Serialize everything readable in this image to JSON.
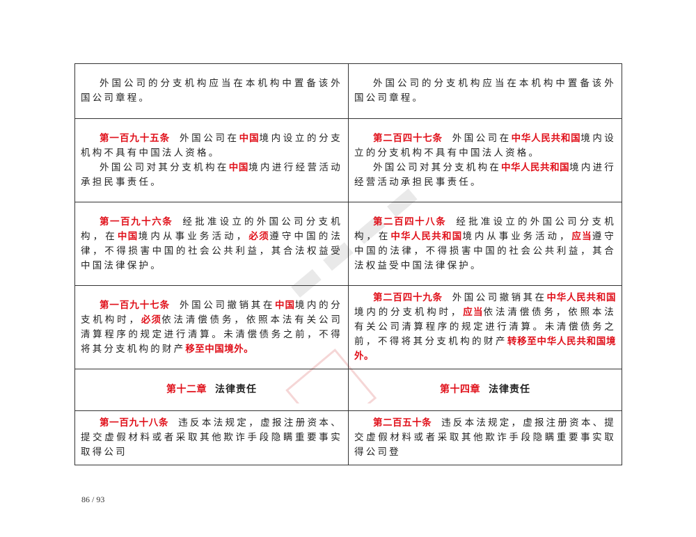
{
  "rows": [
    {
      "left": [
        [
          {
            "t": "外国公司的分支机构应当在本机构中置备该外国公司章程。"
          }
        ]
      ],
      "right": [
        [
          {
            "t": "外国公司的分支机构应当在本机构中置备该外国公司章程。"
          }
        ]
      ]
    },
    {
      "left": [
        [
          {
            "t": "第一百九十五条",
            "red": true,
            "art": true
          },
          {
            "t": "外国公司在"
          },
          {
            "t": "中国",
            "red": true
          },
          {
            "t": "境内设立的分支机构不具有中国法人资格。"
          }
        ],
        [
          {
            "t": "外国公司对其分支机构在"
          },
          {
            "t": "中国",
            "red": true
          },
          {
            "t": "境内进行经营活动承担民事责任。"
          }
        ]
      ],
      "right": [
        [
          {
            "t": "第二百四十七条",
            "red": true,
            "art": true
          },
          {
            "t": "外国公司在"
          },
          {
            "t": "中华人民共和国",
            "red": true
          },
          {
            "t": "境内设立的分支机构不具有中国法人资格。"
          }
        ],
        [
          {
            "t": "外国公司对其分支机构在"
          },
          {
            "t": "中华人民共和国",
            "red": true
          },
          {
            "t": "境内进行经营活动承担民事责任。"
          }
        ]
      ]
    },
    {
      "left": [
        [
          {
            "t": "第一百九十六条",
            "red": true,
            "art": true
          },
          {
            "t": "经批准设立的外国公司分支机构，在"
          },
          {
            "t": "中国",
            "red": true
          },
          {
            "t": "境内从事业务活动，"
          },
          {
            "t": "必须",
            "red": true
          },
          {
            "t": "遵守中国的法律，不得损害中国的社会公共利益，其合法权益受中国法律保护。"
          }
        ]
      ],
      "right": [
        [
          {
            "t": "第二百四十八条",
            "red": true,
            "art": true
          },
          {
            "t": "经批准设立的外国公司分支机构，在"
          },
          {
            "t": "中华人民共和国",
            "red": true
          },
          {
            "t": "境内从事业务活动，"
          },
          {
            "t": "应当",
            "red": true
          },
          {
            "t": "遵守中国的法律，不得损害中国的社会公共利益，其合法权益受中国法律保护。"
          }
        ]
      ]
    },
    {
      "left": [
        [
          {
            "t": "第一百九十七条",
            "red": true,
            "art": true
          },
          {
            "t": "外国公司撤销其在"
          },
          {
            "t": "中国",
            "red": true
          },
          {
            "t": "境内的分支机构时，"
          },
          {
            "t": "必须",
            "red": true
          },
          {
            "t": "依法清偿债务，依照本法有关公司清算程序的规定进行清算。未清偿债务之前，不得将其分支机构的财产"
          },
          {
            "t": "移至中国境外。",
            "red": true
          }
        ]
      ],
      "right": [
        [
          {
            "t": "第二百四十九条",
            "red": true,
            "art": true
          },
          {
            "t": "外国公司撤销其在"
          },
          {
            "t": "中华人民共和国",
            "red": true
          },
          {
            "t": "境内的分支机构时，"
          },
          {
            "t": "应当",
            "red": true
          },
          {
            "t": "依法清偿债务，依照本法有关公司清算程序的规定进行清算。未清偿债务之前，不得将其分支机构的财产"
          },
          {
            "t": "转移至中华人民共和国境外。",
            "red": true
          }
        ]
      ]
    }
  ],
  "chapter": {
    "left": {
      "number": "第十二章",
      "title": "法律责任"
    },
    "right": {
      "number": "第十四章",
      "title": "法律责任"
    }
  },
  "last_row": {
    "left": [
      [
        {
          "t": "第一百九十八条",
          "red": true,
          "art": true
        },
        {
          "t": "违反本法规定，虚报注册资本、提交虚假材料或者采取其他欺诈手段隐瞒重要事实取得公司"
        }
      ]
    ],
    "right": [
      [
        {
          "t": "第二百五十条",
          "red": true,
          "art": true
        },
        {
          "t": "违反本法规定，虚报注册资本、提交虚假材料或者采取其他欺诈手段隐瞒重要事实取得公司登"
        }
      ]
    ]
  },
  "page_number": "86 / 93",
  "colors": {
    "highlight": "#e0101a",
    "border": "#333333"
  }
}
